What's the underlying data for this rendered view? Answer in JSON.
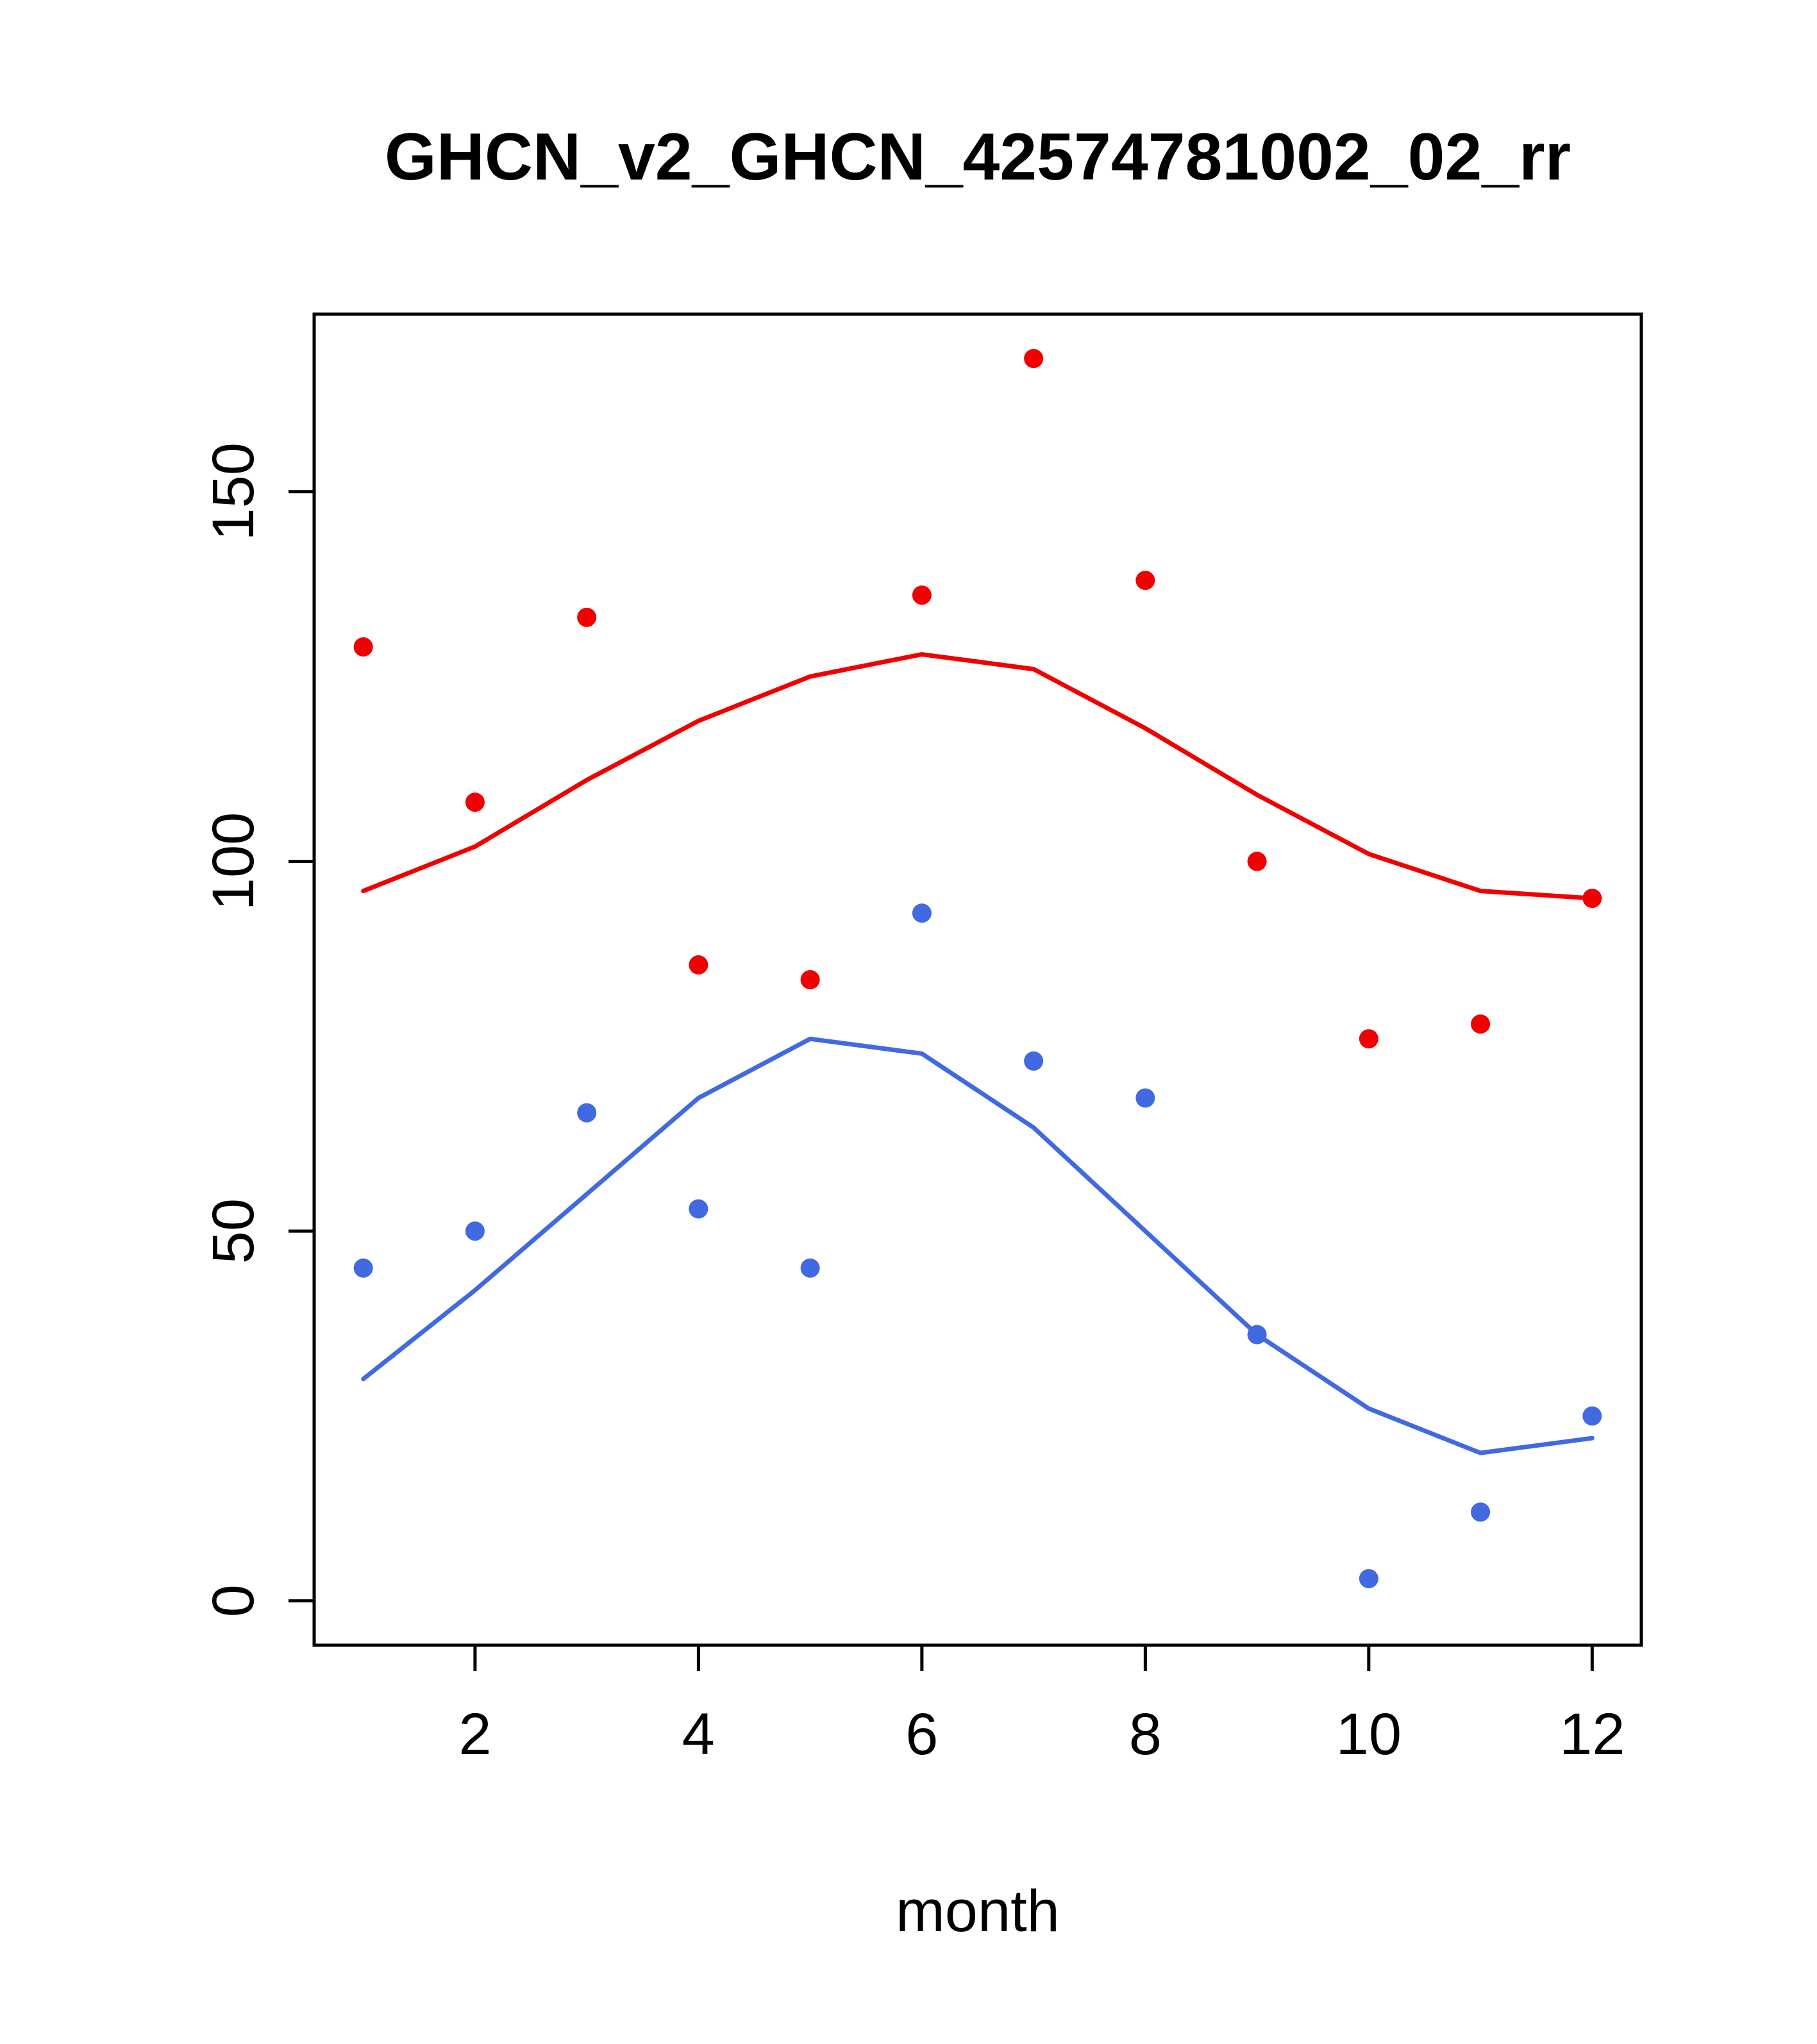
{
  "chart_data": {
    "type": "scatter",
    "title": "GHCN_v2_GHCN_42574781002_02_rr",
    "xlabel": "month",
    "ylabel": "",
    "x": [
      1,
      2,
      3,
      4,
      5,
      6,
      7,
      8,
      9,
      10,
      11,
      12
    ],
    "xticks": [
      2,
      4,
      6,
      8,
      10,
      12
    ],
    "yticks": [
      0,
      50,
      100,
      150
    ],
    "xlim": [
      0.56,
      12.44
    ],
    "ylim": [
      -6,
      174
    ],
    "grid": false,
    "legend": "none",
    "colors": {
      "red_series": "#f00000",
      "blue_series": "#4169e1",
      "axis": "#000000",
      "background": "#ffffff"
    },
    "series": [
      {
        "name": "red-points",
        "kind": "points",
        "color_key": "red_series",
        "values": [
          129,
          108,
          133,
          86,
          84,
          136,
          168,
          138,
          100,
          76,
          78,
          95
        ]
      },
      {
        "name": "red-smooth-line",
        "kind": "line",
        "color_key": "red_series",
        "values": [
          96,
          102,
          111,
          119,
          125,
          128,
          126,
          118,
          109,
          101,
          96,
          95
        ]
      },
      {
        "name": "blue-points",
        "kind": "points",
        "color_key": "blue_series",
        "values": [
          45,
          50,
          66,
          53,
          45,
          93,
          73,
          68,
          36,
          3,
          12,
          25
        ]
      },
      {
        "name": "blue-smooth-line",
        "kind": "line",
        "color_key": "blue_series",
        "values": [
          30,
          42,
          55,
          68,
          76,
          74,
          64,
          50,
          36,
          26,
          20,
          22
        ]
      }
    ]
  }
}
